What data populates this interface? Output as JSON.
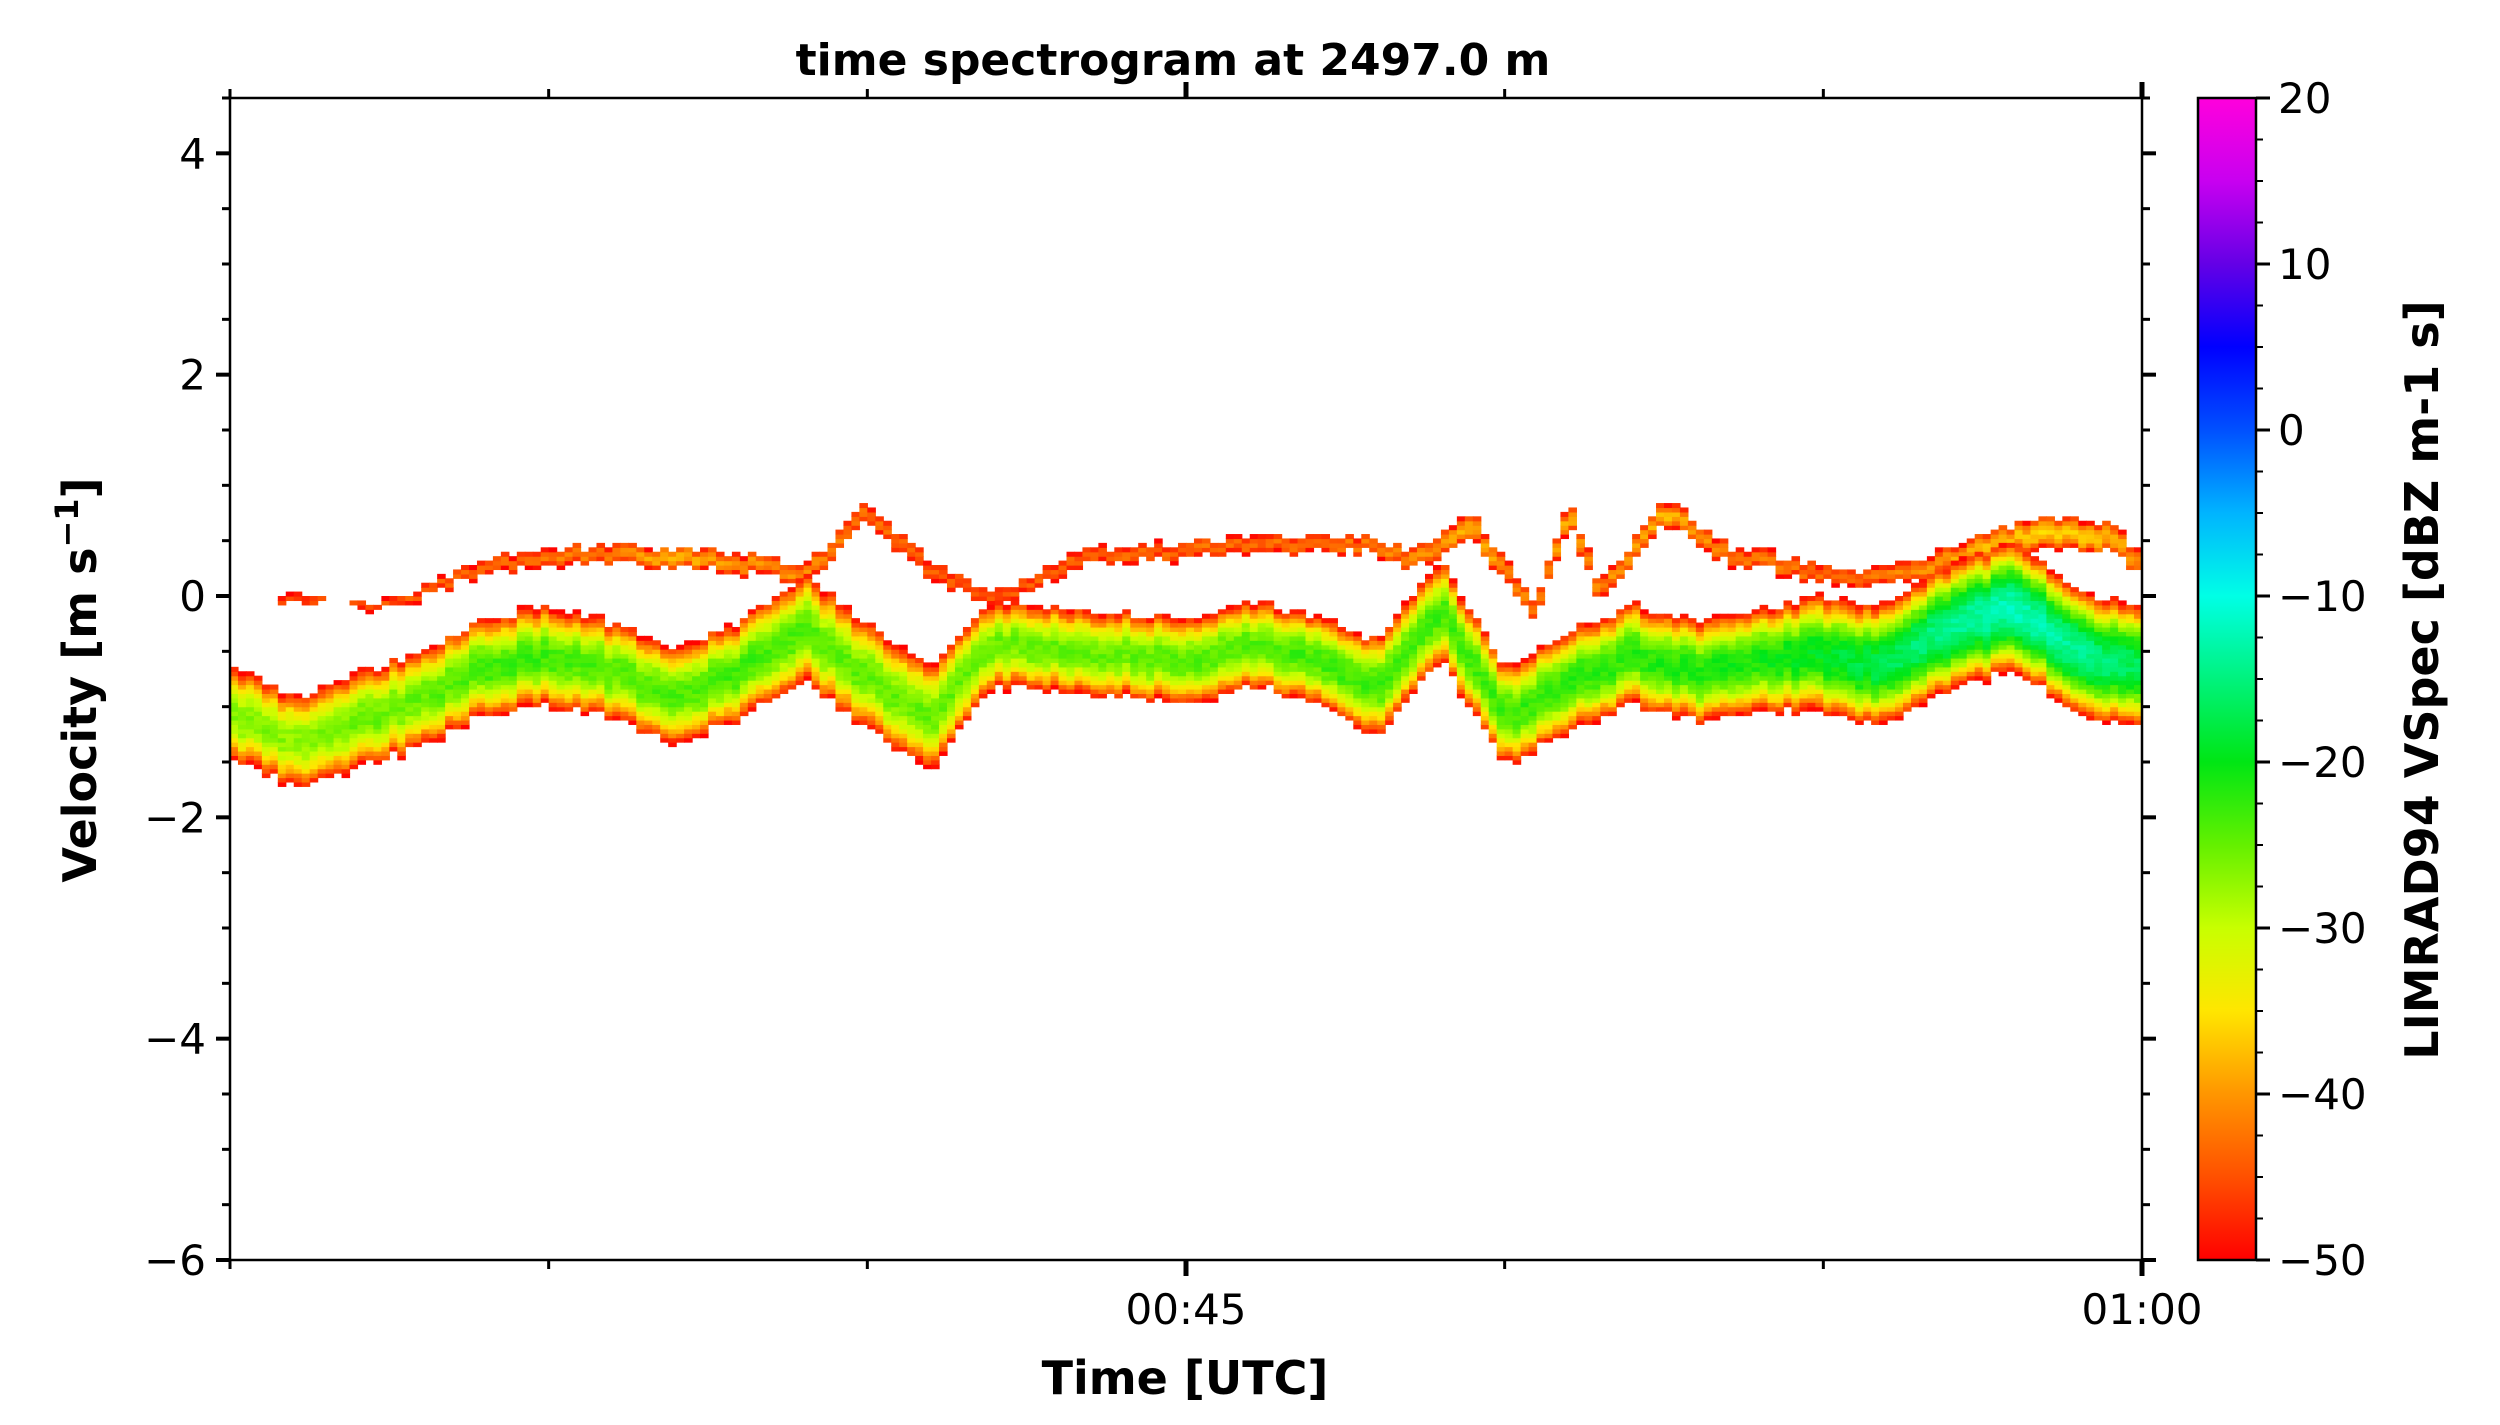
{
  "chart_data": {
    "type": "heatmap",
    "title": "time spectrogram at 2497.0 m",
    "xlabel": "Time [UTC]",
    "ylabel": "Velocity [m s",
    "ylabel_sup": "−1",
    "ylabel_close": "]",
    "xlim": [
      "00:30",
      "01:00"
    ],
    "x_tick_labels": [
      {
        "time": "00:45",
        "label": "00:45"
      },
      {
        "time": "01:00",
        "label": "01:00"
      }
    ],
    "ylim": [
      -6,
      4.5
    ],
    "y_tick_labels": [
      {
        "value": 4,
        "label": "4"
      },
      {
        "value": 2,
        "label": "2"
      },
      {
        "value": 0,
        "label": "0"
      },
      {
        "value": -2,
        "label": "−2"
      },
      {
        "value": -4,
        "label": "−4"
      },
      {
        "value": -6,
        "label": "−6"
      }
    ],
    "colorbar": {
      "label": "LIMRAD94 VSpec [dBZ m-1 s]",
      "range": [
        -50,
        20
      ],
      "tick_labels": [
        {
          "value": 20,
          "label": "20"
        },
        {
          "value": 10,
          "label": "10"
        },
        {
          "value": 0,
          "label": "0"
        },
        {
          "value": -10,
          "label": "−10"
        },
        {
          "value": -20,
          "label": "−20"
        },
        {
          "value": -30,
          "label": "−30"
        },
        {
          "value": -40,
          "label": "−40"
        },
        {
          "value": -50,
          "label": "−50"
        }
      ],
      "colormap": "red-orange-yellow-green-cyan-blue-purple-magenta"
    },
    "main_band": {
      "time_minutes": [
        0,
        1,
        2,
        3,
        4,
        5,
        6,
        7,
        8,
        9,
        10,
        11,
        12,
        13,
        14,
        15,
        16,
        17,
        18,
        19,
        20,
        21,
        22,
        23,
        24,
        25,
        26,
        27,
        28,
        29,
        30
      ],
      "center_velocity": [
        -1.05,
        -1.35,
        -1.15,
        -0.95,
        -0.65,
        -0.55,
        -0.7,
        -0.9,
        -0.7,
        -0.3,
        -0.75,
        -1.1,
        -0.45,
        -0.5,
        -0.55,
        -0.6,
        -0.45,
        -0.6,
        -0.85,
        -0.15,
        -1.1,
        -0.8,
        -0.55,
        -0.7,
        -0.6,
        -0.55,
        -0.65,
        -0.3,
        -0.1,
        -0.5,
        -0.7
      ],
      "half_width": [
        0.45,
        0.45,
        0.45,
        0.45,
        0.45,
        0.45,
        0.45,
        0.45,
        0.45,
        0.5,
        0.5,
        0.5,
        0.4,
        0.4,
        0.4,
        0.4,
        0.4,
        0.4,
        0.45,
        0.45,
        0.45,
        0.45,
        0.45,
        0.45,
        0.45,
        0.5,
        0.5,
        0.5,
        0.5,
        0.5,
        0.5
      ],
      "peak_dbz": [
        -26,
        -27,
        -25,
        -25,
        -23,
        -23,
        -24,
        -24,
        -23,
        -24,
        -25,
        -25,
        -25,
        -25,
        -25,
        -24,
        -24,
        -23,
        -23,
        -23,
        -23,
        -22,
        -22,
        -21,
        -21,
        -19,
        -17,
        -14,
        -12,
        -14,
        -17
      ]
    },
    "upper_band": {
      "time_minutes": [
        1.0,
        2.5,
        4.0,
        5.5,
        7.0,
        8.5,
        9.0,
        10.0,
        11.0,
        12.0,
        13.5,
        15.0,
        16.5,
        18.0,
        18.5,
        19.5,
        20.5,
        21.0,
        21.5,
        22.5,
        23.5,
        24.5,
        25.5,
        26.5,
        27.5,
        28.5,
        29.5,
        30.0
      ],
      "center_velocity": [
        -0.05,
        -0.1,
        0.25,
        0.35,
        0.35,
        0.25,
        0.15,
        0.75,
        0.2,
        -0.05,
        0.35,
        0.4,
        0.45,
        0.45,
        0.3,
        0.6,
        -0.15,
        0.75,
        0.0,
        0.75,
        0.35,
        0.25,
        0.1,
        0.2,
        0.45,
        0.55,
        0.5,
        0.25
      ],
      "half_width": [
        0.08,
        0.08,
        0.13,
        0.14,
        0.14,
        0.14,
        0.15,
        0.17,
        0.17,
        0.15,
        0.14,
        0.14,
        0.14,
        0.14,
        0.15,
        0.17,
        0.15,
        0.17,
        0.15,
        0.17,
        0.15,
        0.15,
        0.14,
        0.16,
        0.18,
        0.2,
        0.2,
        0.18
      ],
      "peak_dbz": [
        -45,
        -45,
        -43,
        -42,
        -38,
        -41,
        -40,
        -43,
        -44,
        -45,
        -43,
        -43,
        -43,
        -42,
        -41,
        -38,
        -42,
        -38,
        -41,
        -38,
        -42,
        -42,
        -43,
        -41,
        -38,
        -36,
        -38,
        -41
      ]
    }
  }
}
